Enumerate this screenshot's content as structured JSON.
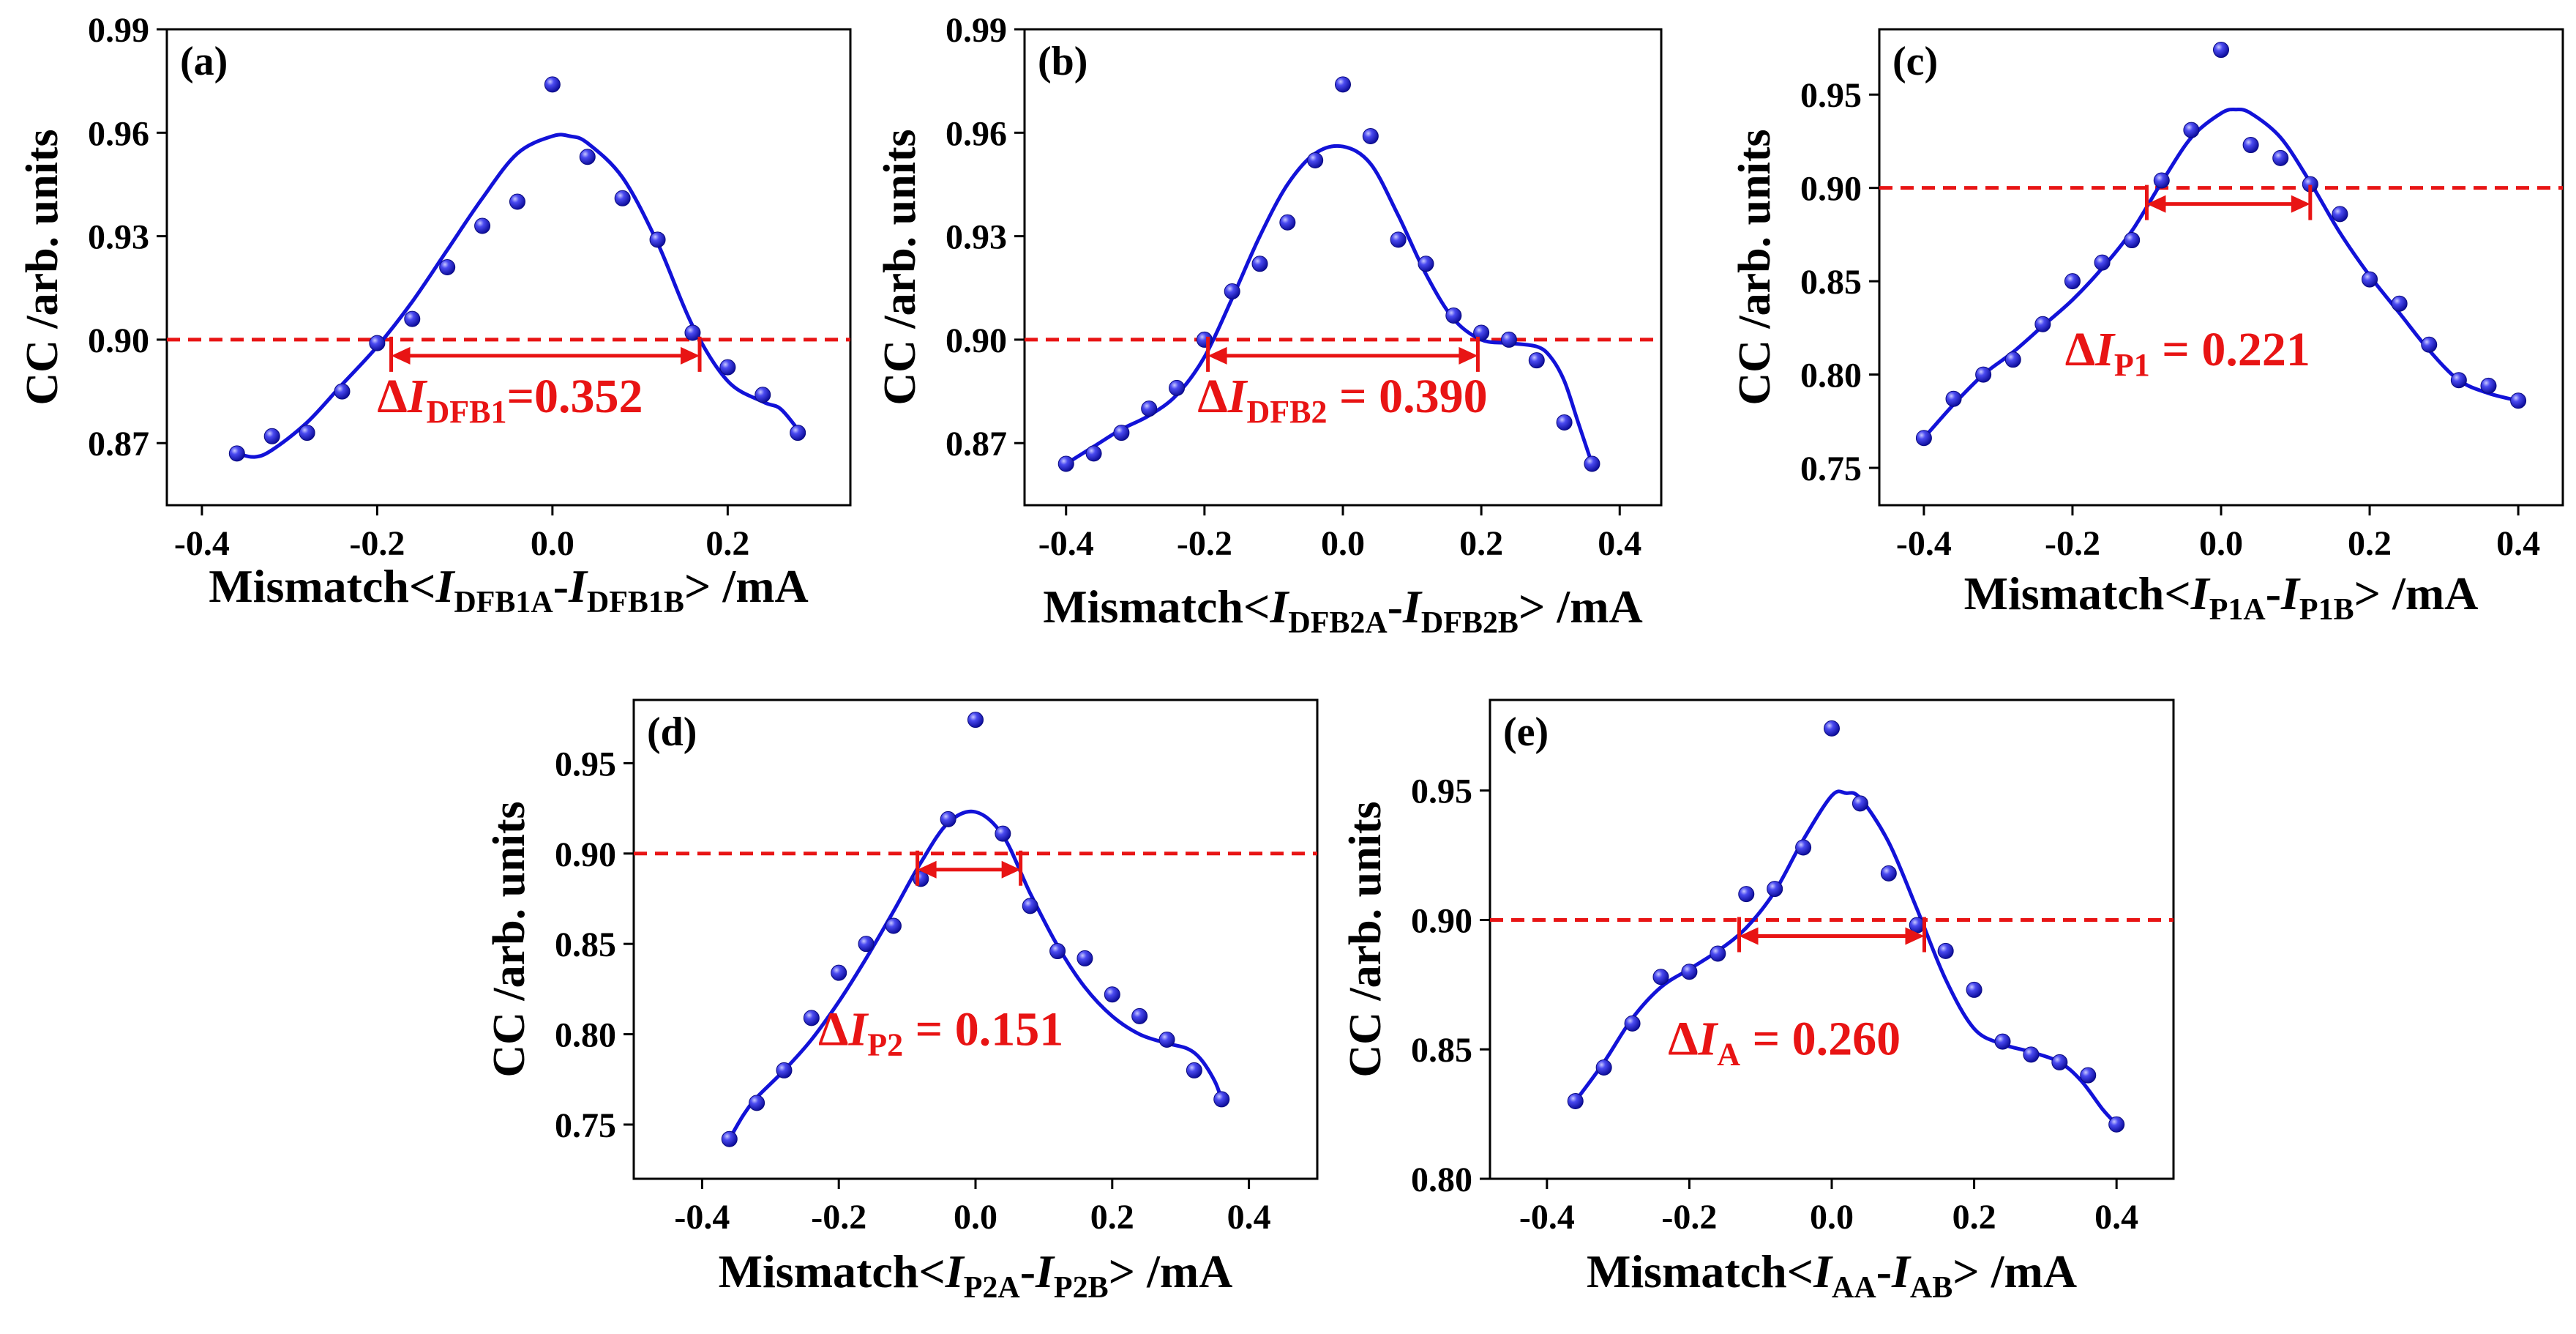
{
  "y_axis_label": "CC /arb. units",
  "mismatch_prefix": "Mismatch<",
  "unit_suffix": "> /mA",
  "colors": {
    "data": "#1212d8",
    "threshold": "#e81414",
    "axis": "#000000",
    "background": "#ffffff"
  },
  "chart_data": [
    {
      "type": "scatter",
      "panel_label": "(a)",
      "xlabel": "Mismatch<I_DFB1A-I_DFB1B> /mA",
      "x_var_a": "DFB1A",
      "x_var_b": "DFB1B",
      "ylabel": "CC /arb. units",
      "xlim": [
        -0.44,
        0.34
      ],
      "ylim": [
        0.852,
        0.99
      ],
      "x_ticks": [
        -0.4,
        -0.2,
        0.0,
        0.2
      ],
      "x_tick_labels": [
        "-0.4",
        "-0.2",
        "0.0",
        "0.2"
      ],
      "y_ticks": [
        0.87,
        0.9,
        0.93,
        0.96,
        0.99
      ],
      "y_tick_labels": [
        "0.87",
        "0.90",
        "0.93",
        "0.96",
        "0.99"
      ],
      "threshold": 0.9,
      "interval": [
        -0.184,
        0.168
      ],
      "annotation_sub": "DFB1",
      "annotation_value": "=0.352",
      "annotation_pos": [
        -0.2,
        0.879
      ],
      "series": [
        {
          "points": {
            "x": [
              -0.36,
              -0.32,
              -0.28,
              -0.24,
              -0.2,
              -0.16,
              -0.12,
              -0.08,
              -0.04,
              0.0,
              0.04,
              0.08,
              0.12,
              0.16,
              0.2,
              0.24,
              0.28
            ],
            "y": [
              0.867,
              0.872,
              0.873,
              0.885,
              0.899,
              0.906,
              0.921,
              0.933,
              0.94,
              0.974,
              0.953,
              0.941,
              0.929,
              0.902,
              0.892,
              0.884,
              0.873
            ]
          },
          "fit": {
            "x": [
              -0.36,
              -0.34,
              -0.32,
              -0.28,
              -0.24,
              -0.2,
              -0.16,
              -0.12,
              -0.08,
              -0.04,
              0.0,
              0.02,
              0.04,
              0.08,
              0.12,
              0.16,
              0.2,
              0.24,
              0.26,
              0.28
            ],
            "y": [
              0.867,
              0.866,
              0.868,
              0.876,
              0.887,
              0.898,
              0.911,
              0.926,
              0.941,
              0.954,
              0.959,
              0.959,
              0.957,
              0.947,
              0.928,
              0.904,
              0.888,
              0.882,
              0.88,
              0.874
            ]
          }
        }
      ]
    },
    {
      "type": "scatter",
      "panel_label": "(b)",
      "xlabel": "Mismatch<I_DFB2A-I_DFB2B> /mA",
      "x_var_a": "DFB2A",
      "x_var_b": "DFB2B",
      "ylabel": "CC /arb. units",
      "xlim": [
        -0.46,
        0.46
      ],
      "ylim": [
        0.852,
        0.99
      ],
      "x_ticks": [
        -0.4,
        -0.2,
        0.0,
        0.2,
        0.4
      ],
      "x_tick_labels": [
        "-0.4",
        "-0.2",
        "0.0",
        "0.2",
        "0.4"
      ],
      "y_ticks": [
        0.87,
        0.9,
        0.93,
        0.96,
        0.99
      ],
      "y_tick_labels": [
        "0.87",
        "0.90",
        "0.93",
        "0.96",
        "0.99"
      ],
      "threshold": 0.9,
      "interval": [
        -0.195,
        0.195
      ],
      "annotation_sub": "DFB2",
      "annotation_value": " = 0.390",
      "annotation_pos": [
        -0.21,
        0.879
      ],
      "series": [
        {
          "points": {
            "x": [
              -0.4,
              -0.36,
              -0.32,
              -0.28,
              -0.24,
              -0.2,
              -0.16,
              -0.12,
              -0.08,
              -0.04,
              0.0,
              0.04,
              0.08,
              0.12,
              0.16,
              0.2,
              0.24,
              0.28,
              0.32,
              0.36
            ],
            "y": [
              0.864,
              0.867,
              0.873,
              0.88,
              0.886,
              0.9,
              0.914,
              0.922,
              0.934,
              0.952,
              0.974,
              0.959,
              0.929,
              0.922,
              0.907,
              0.902,
              0.9,
              0.894,
              0.876,
              0.864
            ]
          },
          "fit": {
            "x": [
              -0.4,
              -0.36,
              -0.32,
              -0.28,
              -0.24,
              -0.2,
              -0.16,
              -0.12,
              -0.08,
              -0.04,
              0.0,
              0.04,
              0.08,
              0.12,
              0.16,
              0.2,
              0.24,
              0.28,
              0.3,
              0.32,
              0.34,
              0.36
            ],
            "y": [
              0.864,
              0.869,
              0.874,
              0.878,
              0.884,
              0.895,
              0.912,
              0.93,
              0.945,
              0.954,
              0.956,
              0.951,
              0.936,
              0.919,
              0.906,
              0.9,
              0.899,
              0.898,
              0.895,
              0.888,
              0.876,
              0.864
            ]
          }
        }
      ]
    },
    {
      "type": "scatter",
      "panel_label": "(c)",
      "xlabel": "Mismatch<I_P1A-I_P1B> /mA",
      "x_var_a": "P1A",
      "x_var_b": "P1B",
      "ylabel": "CC /arb. units",
      "xlim": [
        -0.46,
        0.46
      ],
      "ylim": [
        0.73,
        0.985
      ],
      "x_ticks": [
        -0.4,
        -0.2,
        0.0,
        0.2,
        0.4
      ],
      "x_tick_labels": [
        "-0.4",
        "-0.2",
        "0.0",
        "0.2",
        "0.4"
      ],
      "y_ticks": [
        0.75,
        0.8,
        0.85,
        0.9,
        0.95
      ],
      "y_tick_labels": [
        "0.75",
        "0.80",
        "0.85",
        "0.90",
        "0.95"
      ],
      "threshold": 0.9,
      "interval": [
        -0.1,
        0.12
      ],
      "annotation_sub": "P1",
      "annotation_value": " = 0.221",
      "annotation_pos": [
        -0.21,
        0.805
      ],
      "series": [
        {
          "points": {
            "x": [
              -0.4,
              -0.36,
              -0.32,
              -0.28,
              -0.24,
              -0.2,
              -0.16,
              -0.12,
              -0.08,
              -0.04,
              0.0,
              0.04,
              0.08,
              0.12,
              0.16,
              0.2,
              0.24,
              0.28,
              0.32,
              0.36,
              0.4
            ],
            "y": [
              0.766,
              0.787,
              0.8,
              0.808,
              0.827,
              0.85,
              0.86,
              0.872,
              0.904,
              0.931,
              0.974,
              0.923,
              0.916,
              0.902,
              0.886,
              0.851,
              0.838,
              0.816,
              0.797,
              0.794,
              0.786
            ]
          },
          "fit": {
            "x": [
              -0.4,
              -0.36,
              -0.32,
              -0.28,
              -0.24,
              -0.2,
              -0.16,
              -0.12,
              -0.08,
              -0.04,
              0.0,
              0.02,
              0.04,
              0.08,
              0.12,
              0.16,
              0.2,
              0.24,
              0.28,
              0.32,
              0.36,
              0.4
            ],
            "y": [
              0.766,
              0.784,
              0.8,
              0.812,
              0.826,
              0.84,
              0.857,
              0.877,
              0.903,
              0.927,
              0.94,
              0.942,
              0.94,
              0.927,
              0.903,
              0.876,
              0.853,
              0.833,
              0.813,
              0.797,
              0.79,
              0.786
            ]
          }
        }
      ]
    },
    {
      "type": "scatter",
      "panel_label": "(d)",
      "xlabel": "Mismatch<I_P2A-I_P2B> /mA",
      "x_var_a": "P2A",
      "x_var_b": "P2B",
      "ylabel": "CC /arb. units",
      "xlim": [
        -0.5,
        0.5
      ],
      "ylim": [
        0.72,
        0.985
      ],
      "x_ticks": [
        -0.4,
        -0.2,
        0.0,
        0.2,
        0.4
      ],
      "x_tick_labels": [
        "-0.4",
        "-0.2",
        "0.0",
        "0.2",
        "0.4"
      ],
      "y_ticks": [
        0.75,
        0.8,
        0.85,
        0.9,
        0.95
      ],
      "y_tick_labels": [
        "0.75",
        "0.80",
        "0.85",
        "0.90",
        "0.95"
      ],
      "threshold": 0.9,
      "interval": [
        -0.085,
        0.066
      ],
      "annotation_sub": "P2",
      "annotation_value": " = 0.151",
      "annotation_pos": [
        -0.23,
        0.794
      ],
      "series": [
        {
          "points": {
            "x": [
              -0.36,
              -0.32,
              -0.28,
              -0.24,
              -0.2,
              -0.16,
              -0.12,
              -0.08,
              -0.04,
              0.0,
              0.04,
              0.08,
              0.12,
              0.16,
              0.2,
              0.24,
              0.28,
              0.32,
              0.36
            ],
            "y": [
              0.742,
              0.762,
              0.78,
              0.809,
              0.834,
              0.85,
              0.86,
              0.886,
              0.919,
              0.974,
              0.911,
              0.871,
              0.846,
              0.842,
              0.822,
              0.81,
              0.797,
              0.78,
              0.764
            ]
          },
          "fit": {
            "x": [
              -0.36,
              -0.34,
              -0.32,
              -0.28,
              -0.24,
              -0.2,
              -0.16,
              -0.12,
              -0.08,
              -0.04,
              0.0,
              0.04,
              0.08,
              0.12,
              0.16,
              0.2,
              0.24,
              0.28,
              0.31,
              0.33,
              0.35,
              0.36
            ],
            "y": [
              0.742,
              0.755,
              0.765,
              0.78,
              0.797,
              0.818,
              0.842,
              0.868,
              0.895,
              0.917,
              0.923,
              0.91,
              0.878,
              0.849,
              0.826,
              0.81,
              0.8,
              0.795,
              0.792,
              0.786,
              0.774,
              0.764
            ]
          }
        }
      ]
    },
    {
      "type": "scatter",
      "panel_label": "(e)",
      "xlabel": "Mismatch<I_AA-I_AB> /mA",
      "x_var_a": "AA",
      "x_var_b": "AB",
      "ylabel": "CC /arb. units",
      "xlim": [
        -0.48,
        0.48
      ],
      "ylim": [
        0.8,
        0.985
      ],
      "x_ticks": [
        -0.4,
        -0.2,
        0.0,
        0.2,
        0.4
      ],
      "x_tick_labels": [
        "-0.4",
        "-0.2",
        "0.0",
        "0.2",
        "0.4"
      ],
      "y_ticks": [
        0.8,
        0.85,
        0.9,
        0.95
      ],
      "y_tick_labels": [
        "0.80",
        "0.85",
        "0.90",
        "0.95"
      ],
      "threshold": 0.9,
      "interval": [
        -0.13,
        0.13
      ],
      "annotation_sub": "A",
      "annotation_value": " = 0.260",
      "annotation_pos": [
        -0.23,
        0.848
      ],
      "series": [
        {
          "points": {
            "x": [
              -0.36,
              -0.32,
              -0.28,
              -0.24,
              -0.2,
              -0.16,
              -0.12,
              -0.08,
              -0.04,
              0.0,
              0.04,
              0.08,
              0.12,
              0.16,
              0.2,
              0.24,
              0.28,
              0.32,
              0.36,
              0.4
            ],
            "y": [
              0.83,
              0.843,
              0.86,
              0.878,
              0.88,
              0.887,
              0.91,
              0.912,
              0.928,
              0.974,
              0.945,
              0.918,
              0.898,
              0.888,
              0.873,
              0.853,
              0.848,
              0.845,
              0.84,
              0.821
            ]
          },
          "fit": {
            "x": [
              -0.36,
              -0.32,
              -0.28,
              -0.24,
              -0.2,
              -0.16,
              -0.12,
              -0.08,
              -0.04,
              0.0,
              0.02,
              0.04,
              0.08,
              0.12,
              0.16,
              0.2,
              0.24,
              0.28,
              0.32,
              0.35,
              0.38,
              0.4
            ],
            "y": [
              0.83,
              0.845,
              0.862,
              0.874,
              0.881,
              0.888,
              0.897,
              0.911,
              0.931,
              0.948,
              0.949,
              0.947,
              0.93,
              0.904,
              0.877,
              0.858,
              0.852,
              0.849,
              0.845,
              0.838,
              0.827,
              0.821
            ]
          }
        }
      ]
    }
  ]
}
